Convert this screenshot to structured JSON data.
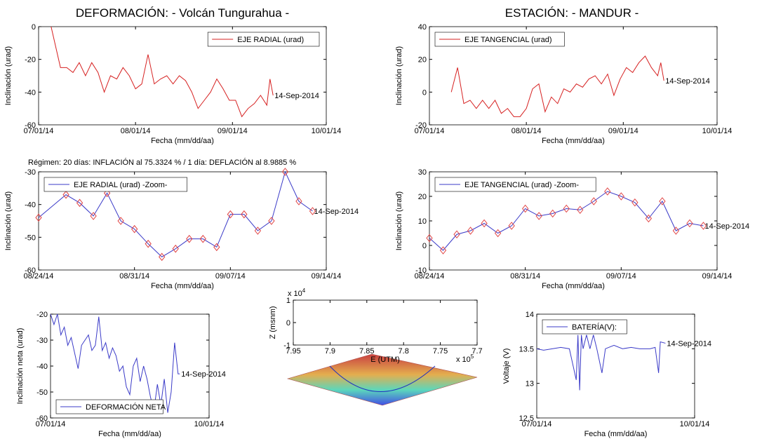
{
  "header": {
    "left": "DEFORMACIÓN: - Volcán Tungurahua -",
    "right": "ESTACIÓN: - MANDUR -"
  },
  "chart_data": [
    {
      "type": "line",
      "xlabel": "Fecha (mm/dd/aa)",
      "ylabel": "Inclinación (urad)",
      "xlim": [
        "07/01/14",
        "10/01/14"
      ],
      "xticks": [
        "07/01/14",
        "08/01/14",
        "09/01/14",
        "10/01/14"
      ],
      "ylim": [
        -60,
        0
      ],
      "yticks": [
        0,
        -20,
        -40,
        -60
      ],
      "legend": "upper-right",
      "annotation": "14-Sep-2014",
      "x": [
        "07/05/14",
        "07/08/14",
        "07/10/14",
        "07/12/14",
        "07/14/14",
        "07/16/14",
        "07/18/14",
        "07/20/14",
        "07/22/14",
        "07/24/14",
        "07/26/14",
        "07/28/14",
        "07/30/14",
        "08/01/14",
        "08/03/14",
        "08/05/14",
        "08/07/14",
        "08/09/14",
        "08/11/14",
        "08/13/14",
        "08/15/14",
        "08/17/14",
        "08/19/14",
        "08/21/14",
        "08/23/14",
        "08/25/14",
        "08/27/14",
        "08/29/14",
        "08/31/14",
        "09/02/14",
        "09/04/14",
        "09/06/14",
        "09/08/14",
        "09/10/14",
        "09/12/14",
        "09/13/14",
        "09/14/14"
      ],
      "series": [
        {
          "name": "EJE RADIAL (urad)",
          "color": "#d62020",
          "values": [
            0,
            -25,
            -25,
            -28,
            -22,
            -30,
            -22,
            -28,
            -40,
            -30,
            -32,
            -25,
            -30,
            -38,
            -35,
            -17,
            -35,
            -32,
            -30,
            -35,
            -30,
            -33,
            -40,
            -50,
            -45,
            -40,
            -32,
            -38,
            -45,
            -45,
            -55,
            -50,
            -47,
            -42,
            -48,
            -32,
            -42
          ]
        }
      ]
    },
    {
      "type": "line",
      "xlabel": "Fecha (mm/dd/aa)",
      "ylabel": "Inclinación (urad)",
      "xlim": [
        "07/01/14",
        "10/01/14"
      ],
      "xticks": [
        "07/01/14",
        "08/01/14",
        "09/01/14",
        "10/01/14"
      ],
      "ylim": [
        -20,
        40
      ],
      "yticks": [
        40,
        20,
        0,
        -20
      ],
      "legend": "upper-left",
      "annotation": "14-Sep-2014",
      "x": [
        "07/08/14",
        "07/10/14",
        "07/12/14",
        "07/14/14",
        "07/16/14",
        "07/18/14",
        "07/20/14",
        "07/22/14",
        "07/24/14",
        "07/26/14",
        "07/28/14",
        "07/30/14",
        "08/01/14",
        "08/03/14",
        "08/05/14",
        "08/07/14",
        "08/09/14",
        "08/11/14",
        "08/13/14",
        "08/15/14",
        "08/17/14",
        "08/19/14",
        "08/21/14",
        "08/23/14",
        "08/25/14",
        "08/27/14",
        "08/29/14",
        "08/31/14",
        "09/02/14",
        "09/04/14",
        "09/06/14",
        "09/08/14",
        "09/10/14",
        "09/12/14",
        "09/13/14",
        "09/14/14"
      ],
      "series": [
        {
          "name": "EJE TANGENCIAL (urad)",
          "color": "#d62020",
          "values": [
            0,
            15,
            -7,
            -5,
            -10,
            -5,
            -10,
            -5,
            -13,
            -10,
            -15,
            -15,
            -10,
            2,
            5,
            -12,
            -3,
            -7,
            2,
            0,
            5,
            3,
            8,
            10,
            5,
            11,
            -2,
            8,
            15,
            12,
            18,
            22,
            15,
            10,
            18,
            7
          ]
        }
      ]
    },
    {
      "type": "line",
      "subtitle": "Régimen: 20 días: INFLACIÓN al 75.3324 % / 1 día: DEFLACIÓN al 8.9885 %",
      "xlabel": "Fecha (mm/dd/aa)",
      "ylabel": "Inclinación (urad)",
      "xlim": [
        "08/24/14",
        "09/14/14"
      ],
      "xticks": [
        "08/24/14",
        "08/31/14",
        "09/07/14",
        "09/14/14"
      ],
      "ylim": [
        -60,
        -30
      ],
      "yticks": [
        -30,
        -40,
        -50,
        -60
      ],
      "legend": "upper-left",
      "annotation": "14-Sep-2014",
      "x": [
        "08/24/14",
        "08/26/14",
        "08/27/14",
        "08/28/14",
        "08/29/14",
        "08/30/14",
        "08/31/14",
        "09/01/14",
        "09/02/14",
        "09/03/14",
        "09/04/14",
        "09/05/14",
        "09/06/14",
        "09/07/14",
        "09/08/14",
        "09/09/14",
        "09/10/14",
        "09/11/14",
        "09/12/14",
        "09/13/14"
      ],
      "series": [
        {
          "name": "EJE RADIAL (urad) -Zoom-",
          "color": "#3b3bc8",
          "marker_color": "#e04040",
          "values": [
            -44,
            -37,
            -39.5,
            -43.5,
            -36.5,
            -45,
            -47.5,
            -52,
            -56,
            -53.5,
            -50.5,
            -50.5,
            -53,
            -43,
            -43,
            -48,
            -45,
            -30,
            -39,
            -42
          ]
        }
      ]
    },
    {
      "type": "line",
      "xlabel": "Fecha (mm/dd/aa)",
      "ylabel": "Inclinación (urad)",
      "xlim": [
        "08/24/14",
        "09/14/14"
      ],
      "xticks": [
        "08/24/14",
        "08/31/14",
        "09/07/14",
        "09/14/14"
      ],
      "ylim": [
        -10,
        30
      ],
      "yticks": [
        30,
        20,
        10,
        0,
        -10
      ],
      "legend": "upper-left",
      "annotation": "14-Sep-2014",
      "x": [
        "08/24/14",
        "08/25/14",
        "08/26/14",
        "08/27/14",
        "08/28/14",
        "08/29/14",
        "08/30/14",
        "08/31/14",
        "09/01/14",
        "09/02/14",
        "09/03/14",
        "09/04/14",
        "09/05/14",
        "09/06/14",
        "09/07/14",
        "09/08/14",
        "09/09/14",
        "09/10/14",
        "09/11/14",
        "09/12/14",
        "09/13/14"
      ],
      "series": [
        {
          "name": "EJE TANGENCIAL (urad) -Zoom-",
          "color": "#3b3bc8",
          "marker_color": "#e04040",
          "values": [
            3,
            -2,
            4.5,
            6,
            9,
            5,
            8,
            15,
            12,
            13,
            15,
            14.5,
            18,
            22,
            20,
            17.5,
            11,
            18,
            6,
            9,
            8
          ]
        }
      ]
    },
    {
      "type": "line",
      "xlabel": "Fecha (mm/dd/aa)",
      "ylabel": "Inclinación neta (urad)",
      "xlim": [
        "07/01/14",
        "10/01/14"
      ],
      "xticks": [
        "07/01/14",
        "10/01/14"
      ],
      "ylim": [
        -60,
        -20
      ],
      "yticks": [
        -20,
        -30,
        -40,
        -50,
        -60
      ],
      "legend": "lower-left",
      "annotation": "14-Sep-2014",
      "x": [
        "07/01/14",
        "07/03/14",
        "07/05/14",
        "07/07/14",
        "07/09/14",
        "07/11/14",
        "07/13/14",
        "07/15/14",
        "07/17/14",
        "07/19/14",
        "07/21/14",
        "07/23/14",
        "07/25/14",
        "07/27/14",
        "07/29/14",
        "07/31/14",
        "08/02/14",
        "08/04/14",
        "08/06/14",
        "08/08/14",
        "08/10/14",
        "08/12/14",
        "08/14/14",
        "08/16/14",
        "08/18/14",
        "08/20/14",
        "08/22/14",
        "08/24/14",
        "08/26/14",
        "08/28/14",
        "08/30/14",
        "09/01/14",
        "09/03/14",
        "09/05/14",
        "09/07/14",
        "09/09/14",
        "09/11/14",
        "09/13/14",
        "09/14/14"
      ],
      "series": [
        {
          "name": "DEFORMACIÓN NETA",
          "color": "#3b3bc8",
          "values": [
            -20,
            -24,
            -20,
            -28,
            -25,
            -32,
            -29,
            -35,
            -41,
            -32,
            -30,
            -28,
            -34,
            -32,
            -21,
            -34,
            -31,
            -37,
            -33,
            -36,
            -42,
            -40,
            -48,
            -51,
            -40,
            -37,
            -46,
            -40,
            -45,
            -52,
            -57,
            -47,
            -55,
            -45,
            -58,
            -50,
            -31,
            -43,
            -43
          ]
        }
      ]
    },
    {
      "type": "surface",
      "xlabel": "E (UTM)",
      "ylabel": "Z (msnm)",
      "xlim": [
        7.95,
        7.7
      ],
      "xticks": [
        7.95,
        7.9,
        7.85,
        7.8,
        7.75,
        7.7
      ],
      "ylim": [
        -1,
        1
      ],
      "yticks": [
        1,
        0,
        -1
      ],
      "y_multiplier": {
        "base": "x 10",
        "exp": "4"
      },
      "x_multiplier": {
        "base": "x 10",
        "exp": "5"
      }
    },
    {
      "type": "line",
      "xlabel": "Fecha (mm/dd/aa)",
      "ylabel": "Voltaje (V)",
      "xlim": [
        "07/01/14",
        "10/01/14"
      ],
      "xticks": [
        "07/01/14",
        "10/01/14"
      ],
      "ylim": [
        12.5,
        14
      ],
      "yticks": [
        14,
        13.5,
        13,
        12.5
      ],
      "legend": "upper-left",
      "annotation": "14-Sep-2014",
      "x": [
        "07/01/14",
        "07/05/14",
        "07/10/14",
        "07/15/14",
        "07/20/14",
        "07/24/14",
        "07/25/14",
        "07/26/14",
        "07/27/14",
        "07/28/14",
        "07/30/14",
        "08/01/14",
        "08/03/14",
        "08/05/14",
        "08/08/14",
        "08/10/14",
        "08/15/14",
        "08/20/14",
        "08/25/14",
        "08/30/14",
        "09/05/14",
        "09/08/14",
        "09/10/14",
        "09/11/14",
        "09/14/14"
      ],
      "series": [
        {
          "name": "BATERÍA(V):",
          "color": "#3b3bc8",
          "values": [
            13.5,
            13.48,
            13.5,
            13.52,
            13.5,
            13.05,
            13.7,
            12.9,
            13.7,
            13.5,
            13.7,
            13.5,
            13.7,
            13.5,
            13.15,
            13.5,
            13.55,
            13.5,
            13.52,
            13.5,
            13.5,
            13.52,
            13.15,
            13.6,
            13.58
          ]
        }
      ]
    }
  ]
}
